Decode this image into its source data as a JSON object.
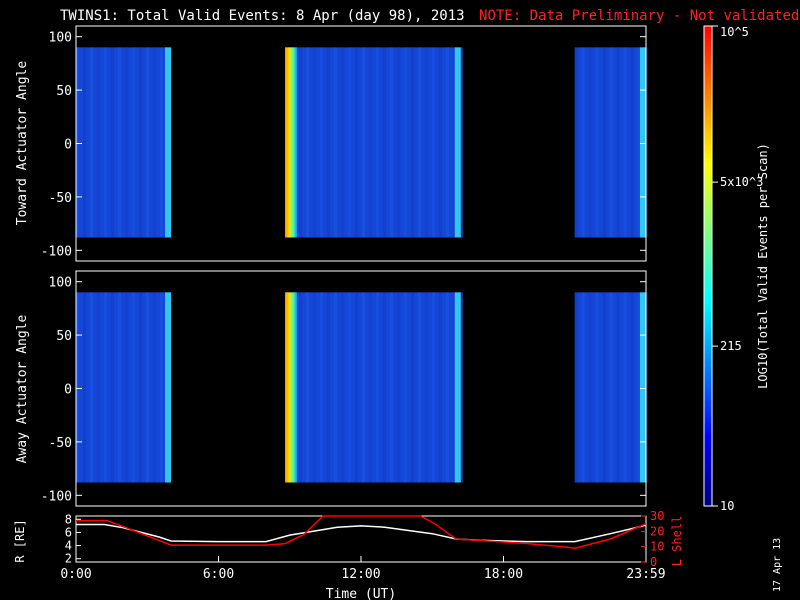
{
  "header": {
    "title": "TWINS1: Total Valid Events:  8 Apr (day  98), 2013",
    "note": "NOTE: Data Preliminary - Not validated"
  },
  "date_stamp": "17 Apr 13",
  "colors": {
    "note": "#ff2020",
    "ephem_r": "#ffffff",
    "ephem_l": "#ff0000",
    "background": "#000000"
  },
  "chart_data": [
    {
      "type": "heatmap",
      "ylabel": "Toward Actuator Angle",
      "ylim": [
        -110,
        110
      ],
      "yticks": [
        "100",
        "50",
        "0",
        "-50",
        "-100"
      ],
      "xlim_hours": [
        0,
        24
      ],
      "scan_angle_range": [
        -88,
        90
      ],
      "data_blocks_hours": [
        [
          0,
          4.0
        ],
        [
          8.8,
          16.2
        ],
        [
          21.0,
          24
        ]
      ],
      "color_scale": {
        "type": "log",
        "min": 10,
        "max": 100000
      }
    },
    {
      "type": "heatmap",
      "ylabel": "Away Actuator Angle",
      "ylim": [
        -110,
        110
      ],
      "yticks": [
        "100",
        "50",
        "0",
        "-50",
        "-100"
      ],
      "xlim_hours": [
        0,
        24
      ],
      "scan_angle_range": [
        -88,
        90
      ],
      "data_blocks_hours": [
        [
          0,
          4.0
        ],
        [
          8.8,
          16.2
        ],
        [
          21.0,
          24
        ]
      ],
      "color_scale": {
        "type": "log",
        "min": 10,
        "max": 100000
      }
    },
    {
      "type": "line",
      "xlabel": "Time (UT)",
      "xticks": [
        "0:00",
        "6:00",
        "12:00",
        "18:00",
        "23:59"
      ],
      "left_axis": {
        "label": "R [RE]",
        "ticks": [
          "8",
          "6",
          "4",
          "2"
        ],
        "ylim": [
          1.5,
          8.5
        ]
      },
      "right_axis": {
        "label": "L Shell",
        "ticks": [
          "30",
          "20",
          "10",
          "0"
        ],
        "ylim": [
          0,
          30
        ]
      },
      "series": [
        {
          "axis": "left",
          "color": "#ffffff",
          "x": [
            0,
            1.2,
            2.0,
            3.5,
            4.0,
            6.0,
            8.0,
            9.0,
            11.0,
            12.0,
            13.0,
            15.0,
            16.0,
            17.0,
            19.0,
            21.0,
            22.5,
            24.0
          ],
          "y": [
            7.2,
            7.2,
            6.7,
            5.3,
            4.7,
            4.6,
            4.6,
            5.6,
            6.8,
            7.0,
            6.8,
            5.8,
            5.0,
            4.8,
            4.6,
            4.6,
            5.8,
            7.1
          ]
        },
        {
          "axis": "right",
          "color": "#ff0000",
          "x": [
            0,
            1.3,
            2.0,
            3.0,
            4.0,
            6.0,
            7.0,
            8.0,
            8.8,
            9.6,
            10.4,
            14.5,
            15.1,
            16.0,
            17.0,
            19.0,
            20.5,
            21.0,
            22.5,
            24.0
          ],
          "y": [
            27,
            27,
            23,
            17,
            11,
            11,
            11,
            11,
            12,
            18,
            30,
            30,
            25,
            15,
            14,
            12,
            10,
            9,
            15,
            25
          ]
        }
      ]
    },
    {
      "type": "colorbar",
      "label": "LOG10(Total Valid Events per Scan)",
      "scale": "log",
      "range": [
        10,
        100000
      ],
      "ticks": [
        "10",
        "215",
        "5x10^3",
        "10^5"
      ],
      "colors": [
        "#000080",
        "#0000ff",
        "#0080ff",
        "#00ffff",
        "#80ff80",
        "#ffff00",
        "#ff8000",
        "#ff0000"
      ]
    }
  ]
}
